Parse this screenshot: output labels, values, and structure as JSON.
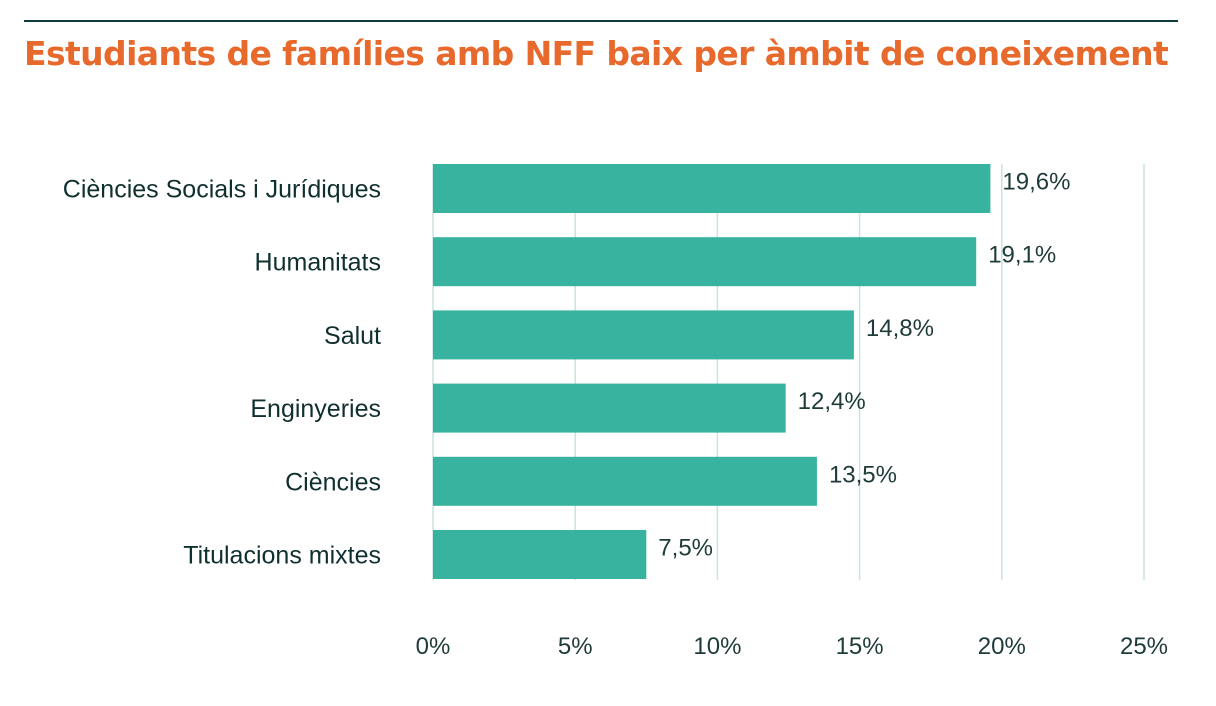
{
  "title": "Estudiants de famílies amb NFF baix per àmbit de coneixement",
  "colors": {
    "bar": "#37b3a0",
    "title": "#e8692c",
    "grid": "#c9e3dd",
    "text": "#10302f"
  },
  "chart_data": {
    "type": "bar",
    "orientation": "horizontal",
    "title": "Estudiants de famílies amb NFF baix per àmbit de coneixement",
    "categories": [
      "Ciències Socials i Jurídiques",
      "Humanitats",
      "Salut",
      "Enginyeries",
      "Ciències",
      "Titulacions mixtes"
    ],
    "values": [
      19.6,
      19.1,
      14.8,
      12.4,
      13.5,
      7.5
    ],
    "value_labels": [
      "19,6%",
      "19,1%",
      "14,8%",
      "12,4%",
      "13,5%",
      "7,5%"
    ],
    "xlim": [
      0,
      25
    ],
    "x_ticks": [
      0,
      5,
      10,
      15,
      20,
      25
    ],
    "x_tick_labels": [
      "0%",
      "5%",
      "10%",
      "15%",
      "20%",
      "25%"
    ],
    "xlabel": "",
    "ylabel": "",
    "grid": "vertical",
    "legend": "none"
  }
}
